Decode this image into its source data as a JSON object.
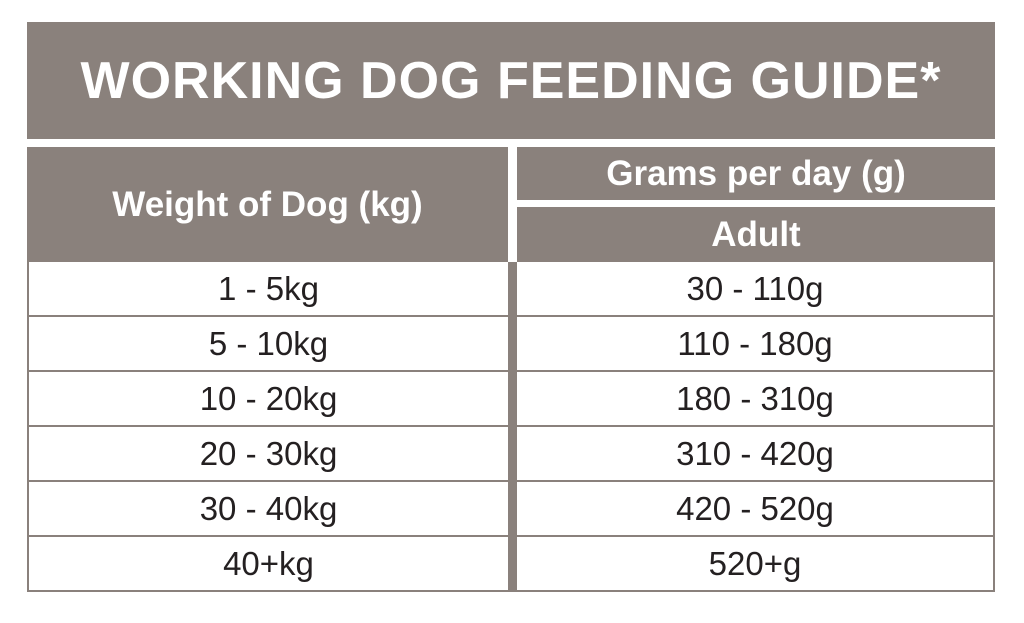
{
  "chart_data": {
    "type": "table",
    "title": "WORKING DOG FEEDING GUIDE*",
    "columns": {
      "weight": "Weight of Dog (kg)",
      "grams": "Grams per day (g)",
      "grams_sub": "Adult"
    },
    "rows": [
      {
        "weight": "1 - 5kg",
        "grams": "30 - 110g"
      },
      {
        "weight": "5 - 10kg",
        "grams": "110 - 180g"
      },
      {
        "weight": "10 - 20kg",
        "grams": "180 - 310g"
      },
      {
        "weight": "20 - 30kg",
        "grams": "310 - 420g"
      },
      {
        "weight": "30 - 40kg",
        "grams": "420 - 520g"
      },
      {
        "weight": "40+kg",
        "grams": "520+g"
      }
    ],
    "layout_hints": {
      "header_style": "taupe blocks with white text, white gaps as separators",
      "body_style": "white rows, dark text, taupe grid lines, thick taupe column divider"
    }
  },
  "colors": {
    "taupe": "#8a817c",
    "ink": "#242021",
    "paper": "#ffffff"
  }
}
